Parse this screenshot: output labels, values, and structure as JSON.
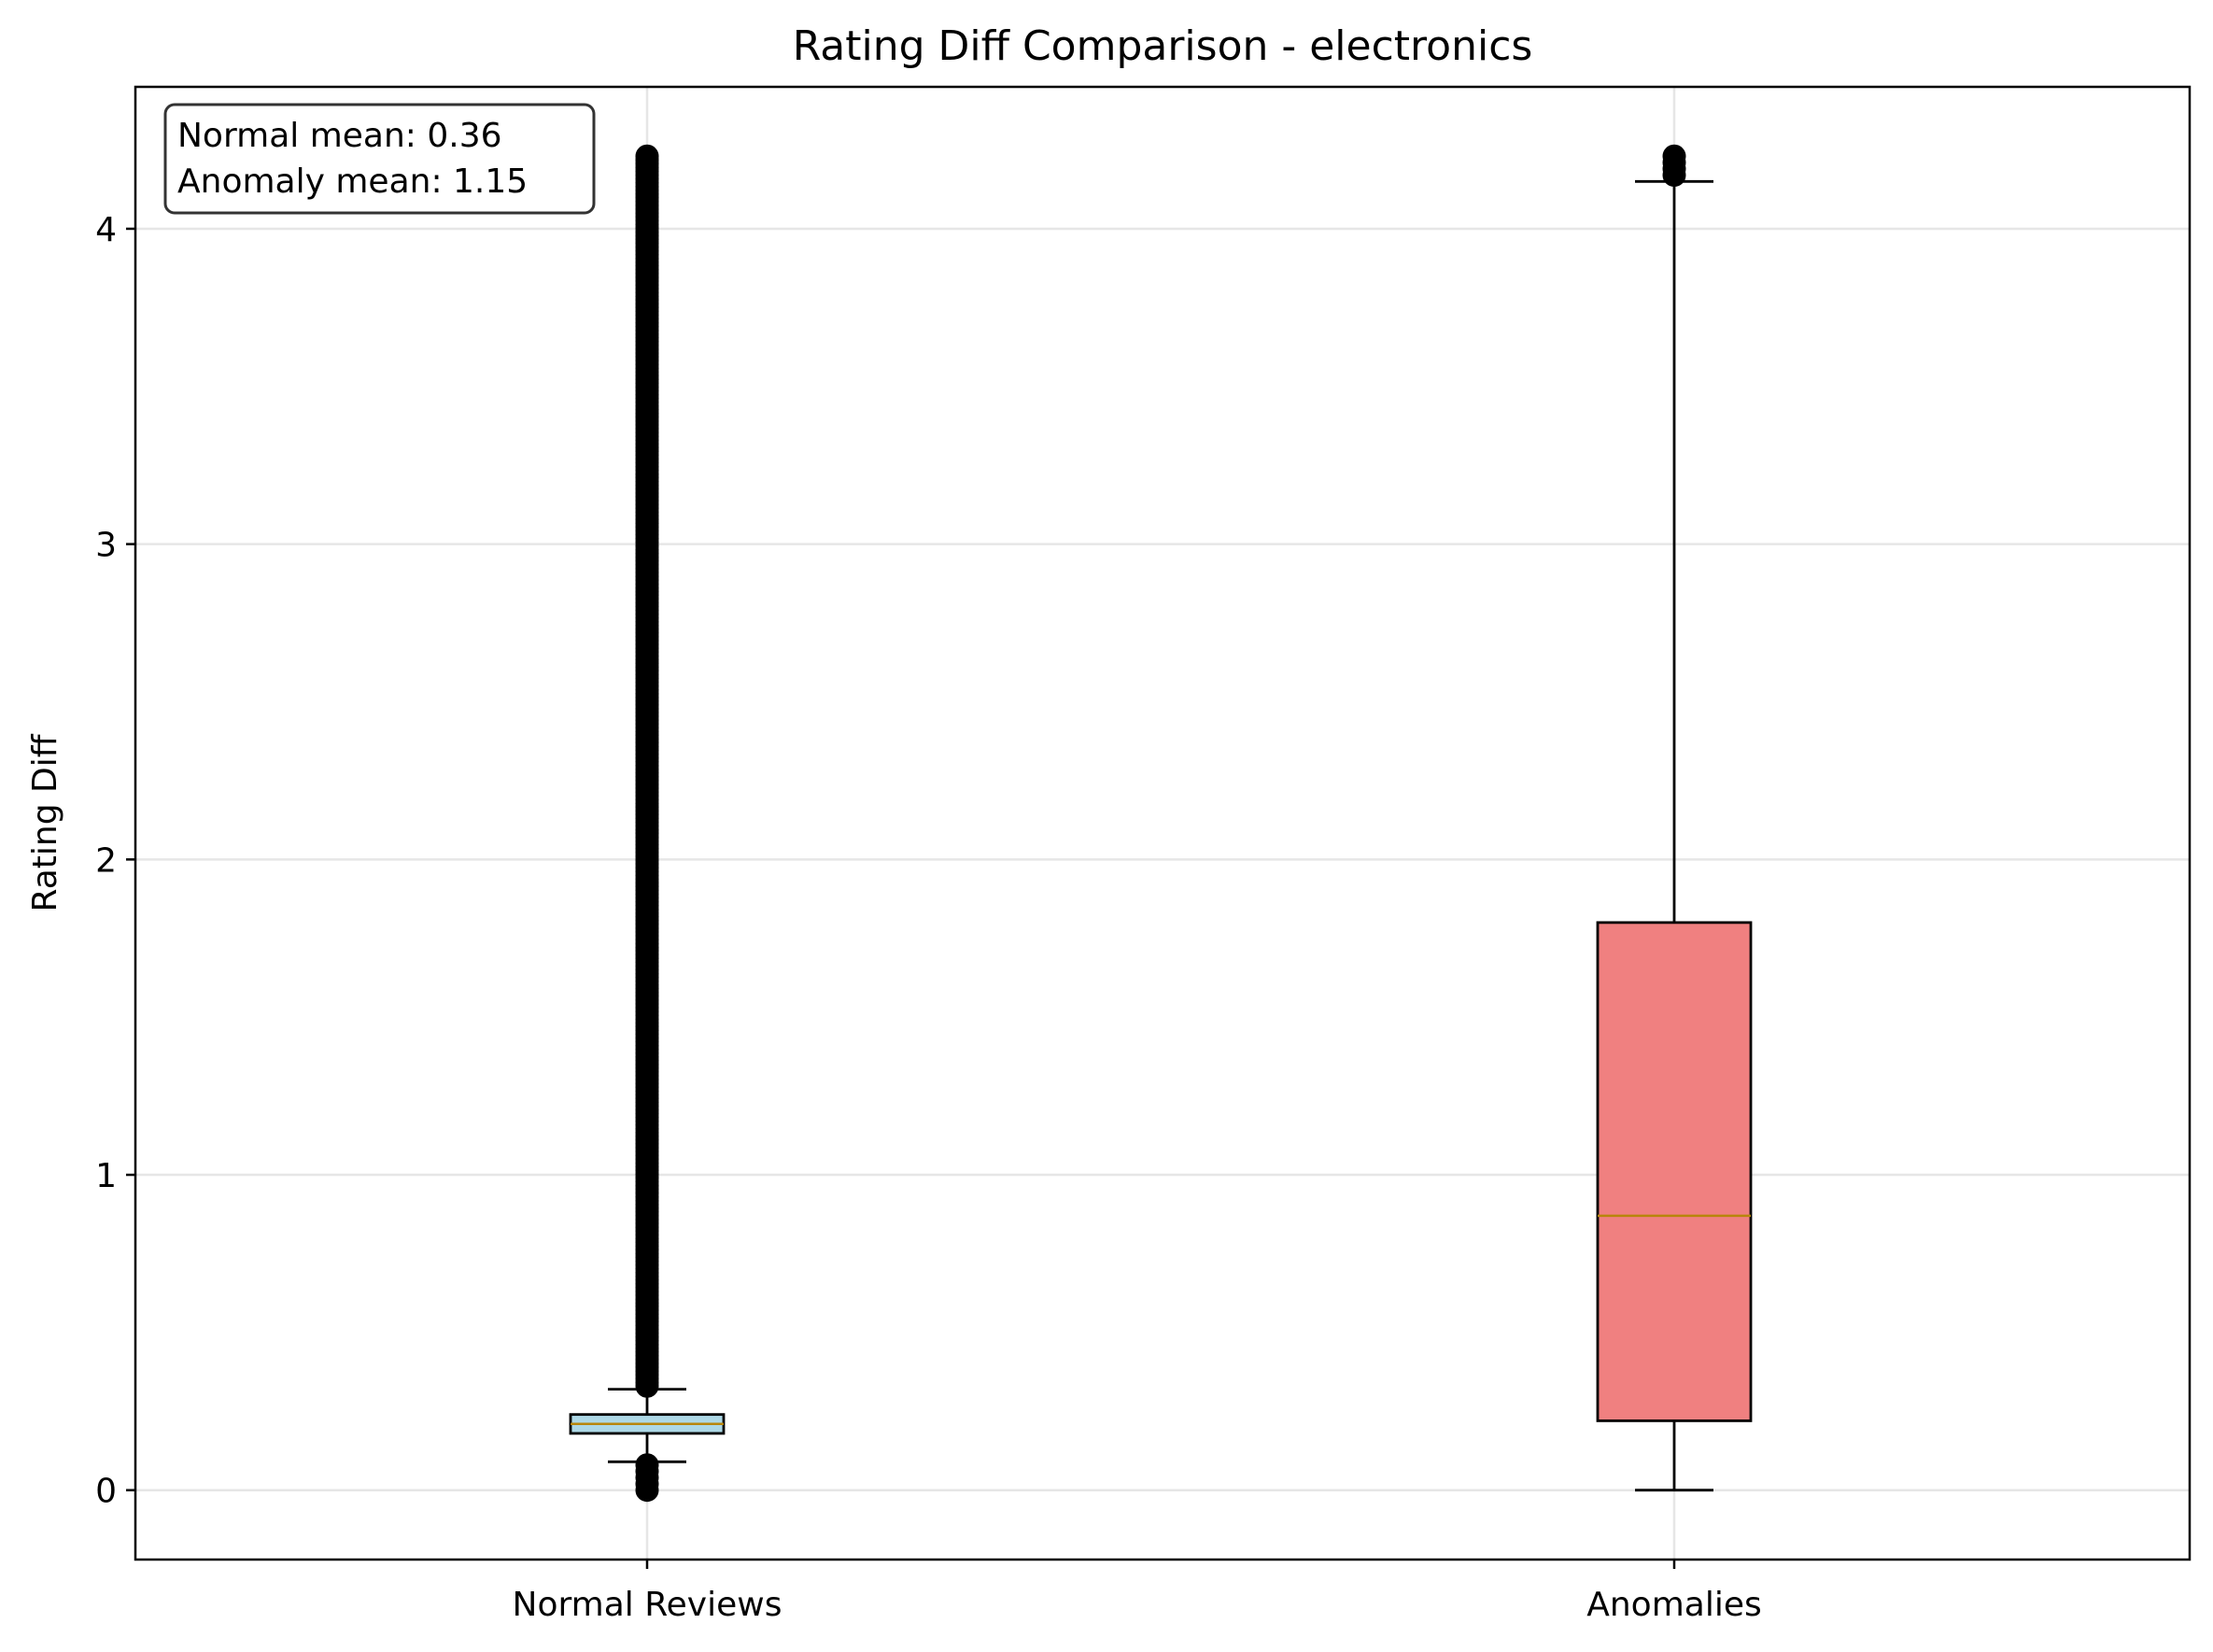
{
  "chart_data": {
    "type": "box",
    "title": "Rating Diff Comparison - electronics",
    "xlabel": "",
    "ylabel": "Rating Diff",
    "ylim": [
      -0.22,
      4.45
    ],
    "yticks": [
      0,
      1,
      2,
      3,
      4
    ],
    "grid": true,
    "annotation": {
      "lines": [
        "Normal mean: 0.36",
        "Anomaly mean: 1.15"
      ],
      "placement": "top-left"
    },
    "categories": [
      "Normal Reviews",
      "Anomalies"
    ],
    "series": [
      {
        "category": "Normal Reviews",
        "color": "#add8e6",
        "whisker_low": 0.09,
        "q1": 0.18,
        "median": 0.21,
        "q3": 0.24,
        "whisker_high": 0.32,
        "outliers_low": [
          0.0,
          0.02,
          0.04,
          0.06,
          0.08
        ],
        "outliers_high_range": [
          0.33,
          4.23
        ]
      },
      {
        "category": "Anomalies",
        "color": "#f08080",
        "whisker_low": 0.0,
        "q1": 0.22,
        "median": 0.87,
        "q3": 1.8,
        "whisker_high": 4.15,
        "outliers_high": [
          4.17,
          4.19,
          4.21,
          4.23
        ]
      }
    ],
    "median_color": "#b8860b"
  }
}
